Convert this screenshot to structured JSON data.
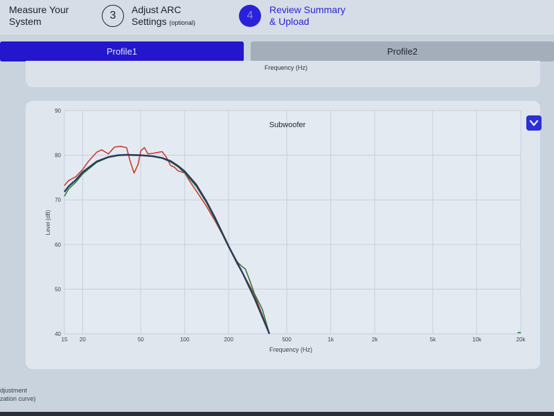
{
  "steps": [
    {
      "label_line1": "Measure Your",
      "label_line2": "System"
    },
    {
      "number": "3",
      "label_line1": "Adjust ARC",
      "label_line2": "Settings",
      "label_note": "(optional)"
    },
    {
      "number": "4",
      "label_line1": "Review Summary",
      "label_line2": "& Upload"
    }
  ],
  "tabs": [
    {
      "label": "Profile1",
      "active": true
    },
    {
      "label": "Profile2",
      "active": false
    }
  ],
  "previous_chart": {
    "xlabel": "Frequency (Hz)"
  },
  "footer": {
    "line1": "djustment",
    "line2": "zation curve)"
  },
  "colors": {
    "accent": "#2a22d8",
    "measured": "#cc3a2e",
    "target": "#2f7a3e",
    "corrected": "#2a3a5a"
  },
  "dropdown_icon": "chevron-down-icon",
  "chart_data": {
    "type": "line",
    "title": "Subwoofer",
    "xlabel": "Frequency (Hz)",
    "ylabel": "Level (dB)",
    "x_scale": "log",
    "xlim": [
      15,
      20000
    ],
    "ylim": [
      40,
      90
    ],
    "x_ticks": [
      15,
      20,
      50,
      100,
      200,
      500,
      1000,
      2000,
      5000,
      10000,
      20000
    ],
    "x_tick_labels": [
      "15",
      "20",
      "50",
      "100",
      "200",
      "500",
      "1k",
      "2k",
      "5k",
      "10k",
      "20k"
    ],
    "y_ticks": [
      40,
      50,
      60,
      70,
      80,
      90
    ],
    "y_tick_labels": [
      "40",
      "50",
      "60",
      "70",
      "80",
      "90"
    ],
    "grid": true,
    "series": [
      {
        "color": "#cc3a2e",
        "x": [
          15,
          16,
          18,
          20,
          22,
          25,
          27,
          30,
          33,
          36,
          40,
          42,
          45,
          48,
          50,
          53,
          56,
          60,
          65,
          70,
          75,
          80,
          85,
          90,
          100,
          110,
          120,
          140,
          160,
          180,
          200,
          230,
          260,
          300,
          340,
          380
        ],
        "y": [
          73.2,
          74.3,
          75.2,
          76.8,
          78.7,
          80.7,
          81.2,
          80.3,
          81.8,
          82.0,
          81.7,
          79.0,
          76.0,
          78.0,
          81.0,
          81.7,
          80.3,
          80.4,
          80.6,
          80.8,
          79.5,
          77.7,
          77.3,
          76.5,
          76.0,
          73.8,
          72.0,
          68.7,
          65.5,
          62.4,
          59.4,
          55.5,
          52.5,
          48.8,
          44.2,
          40.0
        ]
      },
      {
        "color": "#2f7a3e",
        "x": [
          15,
          16,
          18,
          20,
          25,
          30,
          35,
          40,
          50,
          60,
          70,
          80,
          90,
          100,
          120,
          140,
          160,
          200,
          230,
          250,
          260,
          280,
          300,
          340,
          380
        ],
        "y": [
          70.8,
          72.4,
          74.0,
          75.8,
          78.4,
          79.5,
          79.9,
          80.0,
          79.9,
          79.7,
          79.3,
          78.5,
          77.4,
          76.0,
          73.0,
          69.5,
          65.9,
          59.4,
          56.0,
          54.9,
          54.5,
          51.8,
          49.0,
          45.5,
          40.0
        ]
      },
      {
        "color": "#2a3a5a",
        "x": [
          15,
          16,
          18,
          20,
          25,
          30,
          35,
          40,
          50,
          60,
          70,
          80,
          90,
          100,
          120,
          140,
          160,
          200,
          250,
          300,
          380
        ],
        "y": [
          71.8,
          73.0,
          74.5,
          76.2,
          78.6,
          79.6,
          80.0,
          80.1,
          80.0,
          79.8,
          79.4,
          78.7,
          77.6,
          76.4,
          73.4,
          69.8,
          66.2,
          59.6,
          53.5,
          48.0,
          40.0
        ]
      },
      {
        "color": "#2f7a3e",
        "x": [
          19000,
          19500,
          20000
        ],
        "y": [
          40.2,
          40.3,
          40.2
        ]
      }
    ]
  }
}
